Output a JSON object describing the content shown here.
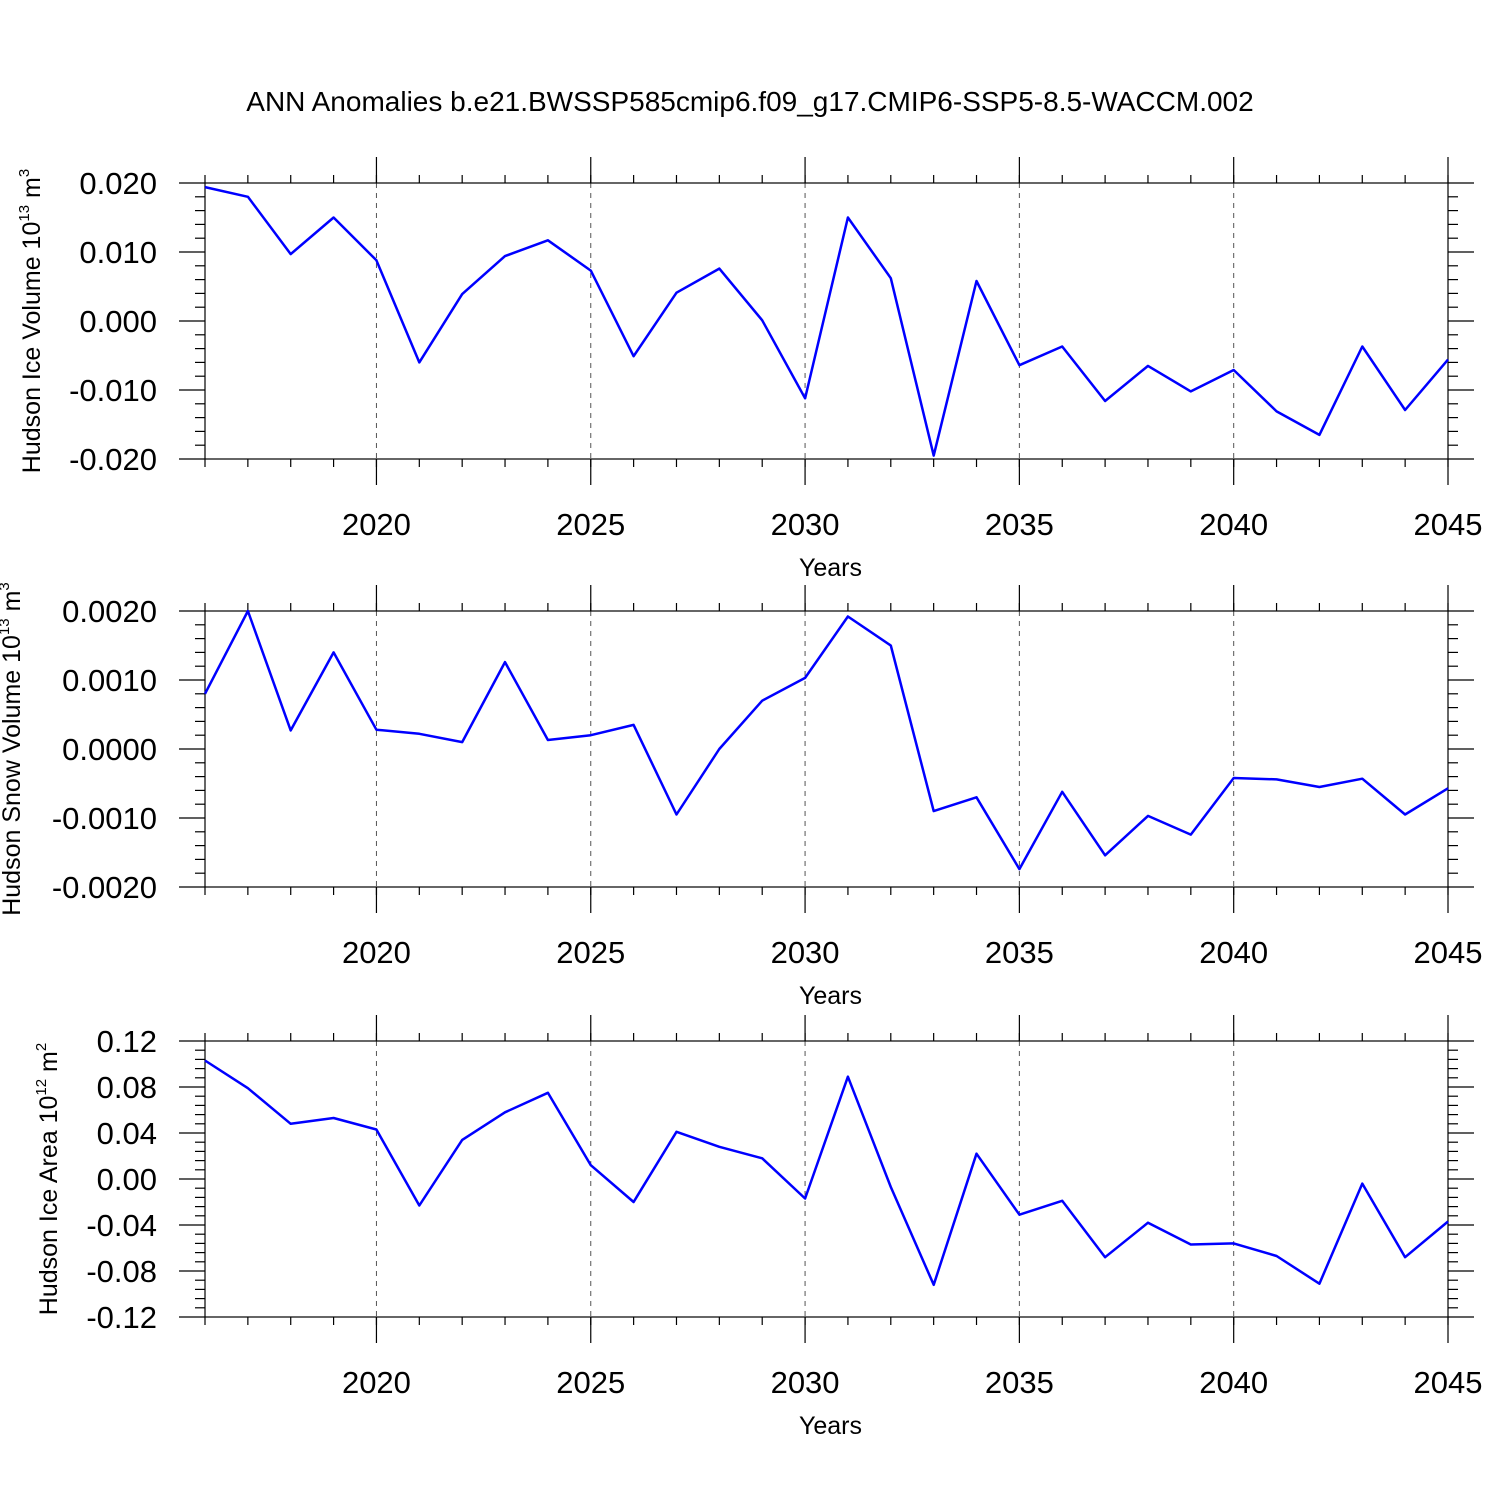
{
  "figure_title": "ANN Anomalies b.e21.BWSSP585cmip6.f09_g17.CMIP6-SSP5-8.5-WACCM.002",
  "series_color": "#0000ff",
  "chart_data": [
    {
      "type": "line",
      "ylabel_main": "Hudson Ice Volume 10",
      "ylabel_exp": "13",
      "ylabel_unit": " m",
      "ylabel_unit_exp": "3",
      "xlabel": "Years",
      "xlim": [
        2016,
        2045
      ],
      "ylim": [
        -0.02,
        0.02
      ],
      "x_ticks": [
        "2020",
        "2025",
        "2030",
        "2035",
        "2040",
        "2045"
      ],
      "y_ticks": [
        "-0.020",
        "-0.010",
        "0.000",
        "0.010",
        "0.020"
      ],
      "x": [
        2016,
        2017,
        2018,
        2019,
        2020,
        2021,
        2022,
        2023,
        2024,
        2025,
        2026,
        2027,
        2028,
        2029,
        2030,
        2031,
        2032,
        2033,
        2034,
        2035,
        2036,
        2037,
        2038,
        2039,
        2040,
        2041,
        2042,
        2043,
        2044,
        2045
      ],
      "values": [
        0.0194,
        0.018,
        0.0097,
        0.015,
        0.0088,
        -0.006,
        0.0039,
        0.0094,
        0.0117,
        0.0073,
        -0.0051,
        0.0041,
        0.0076,
        0.0001,
        -0.0112,
        0.015,
        0.0062,
        -0.0195,
        0.0058,
        -0.0064,
        -0.0037,
        -0.0116,
        -0.0065,
        -0.0102,
        -0.0071,
        -0.0131,
        -0.0165,
        -0.0037,
        -0.0129,
        -0.0056
      ]
    },
    {
      "type": "line",
      "ylabel_main": "Hudson Snow Volume 10",
      "ylabel_exp": "13",
      "ylabel_unit": " m",
      "ylabel_unit_exp": "3",
      "xlabel": "Years",
      "xlim": [
        2016,
        2045
      ],
      "ylim": [
        -0.002,
        0.002
      ],
      "x_ticks": [
        "2020",
        "2025",
        "2030",
        "2035",
        "2040",
        "2045"
      ],
      "y_ticks": [
        "-0.0020",
        "-0.0010",
        "0.0000",
        "0.0010",
        "0.0020"
      ],
      "x": [
        2016,
        2017,
        2018,
        2019,
        2020,
        2021,
        2022,
        2023,
        2024,
        2025,
        2026,
        2027,
        2028,
        2029,
        2030,
        2031,
        2032,
        2033,
        2034,
        2035,
        2036,
        2037,
        2038,
        2039,
        2040,
        2041,
        2042,
        2043,
        2044,
        2045
      ],
      "values": [
        0.0008,
        0.002,
        0.00027,
        0.0014,
        0.00028,
        0.00022,
        0.0001,
        0.00126,
        0.00013,
        0.0002,
        0.00035,
        -0.00095,
        0.0,
        0.0007,
        0.00103,
        0.00192,
        0.0015,
        -0.0009,
        -0.0007,
        -0.00174,
        -0.00062,
        -0.00154,
        -0.00097,
        -0.00124,
        -0.00042,
        -0.00044,
        -0.00055,
        -0.00043,
        -0.00095,
        -0.00057
      ]
    },
    {
      "type": "line",
      "ylabel_main": "Hudson Ice Area 10",
      "ylabel_exp": "12",
      "ylabel_unit": " m",
      "ylabel_unit_exp": "2",
      "xlabel": "Years",
      "xlim": [
        2016,
        2045
      ],
      "ylim": [
        -0.12,
        0.12
      ],
      "x_ticks": [
        "2020",
        "2025",
        "2030",
        "2035",
        "2040",
        "2045"
      ],
      "y_ticks": [
        "-0.12",
        "-0.08",
        "-0.04",
        "0.00",
        "0.04",
        "0.08",
        "0.12"
      ],
      "x": [
        2016,
        2017,
        2018,
        2019,
        2020,
        2021,
        2022,
        2023,
        2024,
        2025,
        2026,
        2027,
        2028,
        2029,
        2030,
        2031,
        2032,
        2033,
        2034,
        2035,
        2036,
        2037,
        2038,
        2039,
        2040,
        2041,
        2042,
        2043,
        2044,
        2045
      ],
      "values": [
        0.103,
        0.079,
        0.048,
        0.053,
        0.043,
        -0.023,
        0.034,
        0.058,
        0.075,
        0.012,
        -0.02,
        0.041,
        0.028,
        0.018,
        -0.017,
        0.089,
        -0.007,
        -0.092,
        0.022,
        -0.031,
        -0.019,
        -0.068,
        -0.038,
        -0.057,
        -0.056,
        -0.067,
        -0.091,
        -0.004,
        -0.068,
        -0.037
      ]
    }
  ]
}
